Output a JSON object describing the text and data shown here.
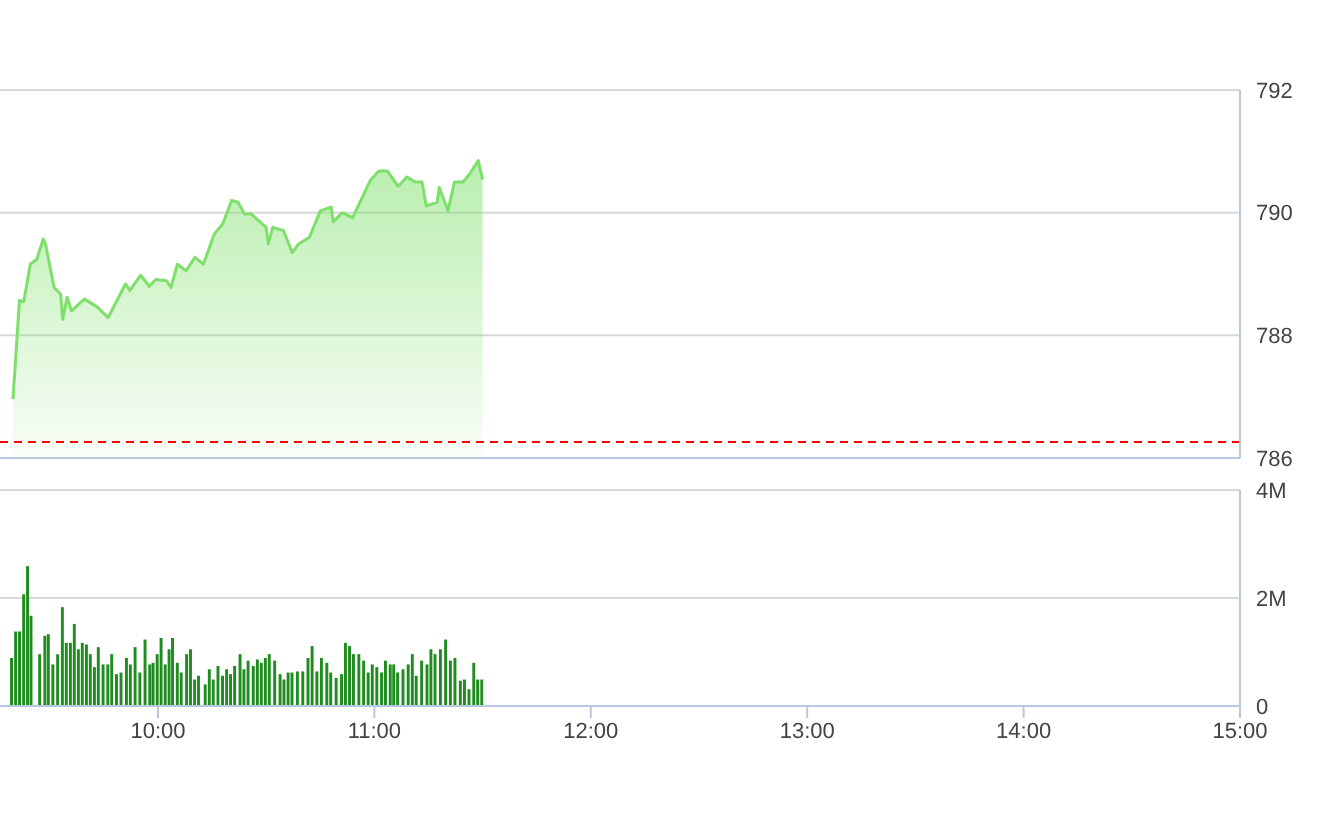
{
  "chart_data": [
    {
      "type": "area",
      "x": [
        9.33,
        9.36,
        9.38,
        9.41,
        9.44,
        9.47,
        9.48,
        9.52,
        9.55,
        9.56,
        9.58,
        9.6,
        9.66,
        9.72,
        9.77,
        9.85,
        9.87,
        9.92,
        9.96,
        9.99,
        10.04,
        10.06,
        10.09,
        10.13,
        10.17,
        10.21,
        10.26,
        10.3,
        10.34,
        10.37,
        10.4,
        10.43,
        10.5,
        10.51,
        10.53,
        10.58,
        10.62,
        10.65,
        10.7,
        10.75,
        10.8,
        10.81,
        10.85,
        10.9,
        10.94,
        10.98,
        11.02,
        11.06,
        11.11,
        11.15,
        11.19,
        11.22,
        11.24,
        11.29,
        11.3,
        11.34,
        11.37,
        11.41,
        11.44,
        11.48,
        11.5
      ],
      "series": [
        {
          "color": "#7ee06a",
          "values": [
            786.96,
            788.57,
            788.55,
            789.16,
            789.24,
            789.57,
            789.49,
            788.78,
            788.67,
            788.26,
            788.62,
            788.4,
            788.59,
            788.46,
            788.29,
            788.84,
            788.73,
            788.98,
            788.8,
            788.91,
            788.89,
            788.78,
            789.16,
            789.05,
            789.27,
            789.16,
            789.65,
            789.82,
            790.2,
            790.17,
            789.98,
            789.98,
            789.76,
            789.49,
            789.76,
            789.71,
            789.35,
            789.49,
            789.6,
            790.03,
            790.09,
            789.85,
            790.0,
            789.92,
            790.22,
            790.52,
            790.68,
            790.68,
            790.43,
            790.58,
            790.5,
            790.5,
            790.11,
            790.17,
            790.41,
            790.03,
            790.5,
            790.5,
            790.63,
            790.85,
            790.54
          ]
        }
      ],
      "xlim": [
        9.27,
        15
      ],
      "ylim": [
        786,
        792
      ],
      "yticks": [
        786,
        788,
        790,
        792
      ],
      "grid": "y",
      "legend": false,
      "tick_labels": "y",
      "ref_lines": [
        {
          "axis": "y",
          "value": 786.26,
          "color": "#ff0000",
          "line_style": "dashed"
        }
      ]
    },
    {
      "type": "bar",
      "x": [
        9.324,
        9.343,
        9.361,
        9.38,
        9.398,
        9.414,
        9.454,
        9.478,
        9.494,
        9.515,
        9.537,
        9.559,
        9.577,
        9.596,
        9.614,
        9.633,
        9.651,
        9.67,
        9.688,
        9.707,
        9.725,
        9.747,
        9.769,
        9.787,
        9.809,
        9.83,
        9.855,
        9.873,
        9.895,
        9.917,
        9.941,
        9.963,
        9.978,
        9.997,
        10.015,
        10.034,
        10.052,
        10.068,
        10.09,
        10.108,
        10.133,
        10.151,
        10.17,
        10.188,
        10.219,
        10.238,
        10.256,
        10.278,
        10.299,
        10.318,
        10.336,
        10.355,
        10.38,
        10.398,
        10.417,
        10.441,
        10.46,
        10.478,
        10.497,
        10.515,
        10.54,
        10.565,
        10.583,
        10.602,
        10.62,
        10.645,
        10.67,
        10.694,
        10.713,
        10.735,
        10.756,
        10.781,
        10.799,
        10.824,
        10.849,
        10.867,
        10.886,
        10.904,
        10.929,
        10.951,
        10.972,
        10.991,
        11.012,
        11.034,
        11.052,
        11.074,
        11.09,
        11.108,
        11.133,
        11.157,
        11.176,
        11.194,
        11.219,
        11.244,
        11.262,
        11.281,
        11.306,
        11.33,
        11.352,
        11.373,
        11.398,
        11.417,
        11.438,
        11.46,
        11.478,
        11.497
      ],
      "series": [
        {
          "color": "#1e8c1e",
          "values": [
            0.89,
            1.38,
            1.38,
            2.07,
            2.59,
            1.67,
            0.96,
            1.3,
            1.33,
            0.77,
            0.96,
            1.83,
            1.17,
            1.17,
            1.52,
            1.05,
            1.17,
            1.14,
            0.96,
            0.72,
            1.09,
            0.77,
            0.77,
            0.96,
            0.59,
            0.62,
            0.89,
            0.77,
            1.09,
            0.62,
            1.23,
            0.77,
            0.8,
            0.96,
            1.26,
            0.77,
            1.05,
            1.26,
            0.8,
            0.62,
            0.96,
            1.05,
            0.49,
            0.56,
            0.4,
            0.68,
            0.49,
            0.74,
            0.56,
            0.68,
            0.59,
            0.74,
            0.96,
            0.68,
            0.84,
            0.74,
            0.86,
            0.8,
            0.89,
            0.96,
            0.84,
            0.59,
            0.49,
            0.62,
            0.62,
            0.64,
            0.64,
            0.89,
            1.11,
            0.64,
            0.89,
            0.8,
            0.62,
            0.52,
            0.59,
            1.17,
            1.11,
            0.96,
            0.96,
            0.84,
            0.62,
            0.77,
            0.72,
            0.62,
            0.84,
            0.77,
            0.77,
            0.62,
            0.68,
            0.77,
            0.96,
            0.56,
            0.84,
            0.77,
            1.05,
            0.96,
            1.05,
            1.23,
            0.84,
            0.89,
            0.47,
            0.49,
            0.31,
            0.8,
            0.49,
            0.49
          ]
        }
      ],
      "xlim": [
        9.27,
        15
      ],
      "xticks": [
        {
          "value": 10,
          "label": "10:00"
        },
        {
          "value": 11,
          "label": "11:00"
        },
        {
          "value": 12,
          "label": "12:00"
        },
        {
          "value": 13,
          "label": "13:00"
        },
        {
          "value": 14,
          "label": "14:00"
        },
        {
          "value": 15,
          "label": "15:00"
        }
      ],
      "ylim": [
        0,
        4
      ],
      "yticks": [
        {
          "value": 0,
          "label": "0"
        },
        {
          "value": 2,
          "label": "2M"
        },
        {
          "value": 4,
          "label": "4M"
        }
      ],
      "grid": "y",
      "legend": false
    }
  ]
}
